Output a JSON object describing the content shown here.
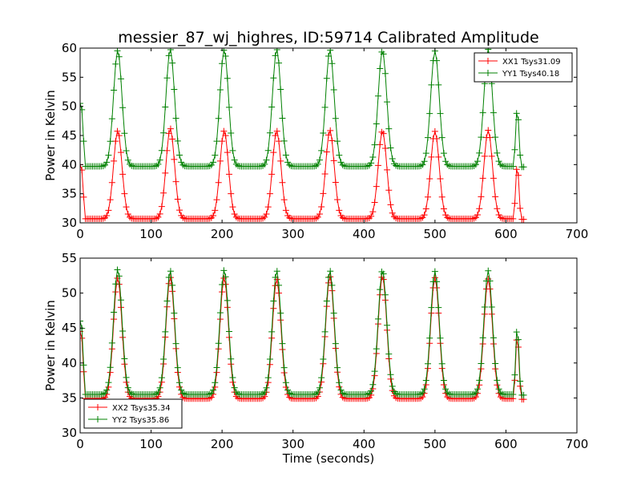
{
  "figure": {
    "title": "messier_87_wj_highres, ID:59714 Calibrated Amplitude"
  },
  "chart_data": [
    {
      "type": "line",
      "title": "messier_87_wj_highres, ID:59714 Calibrated Amplitude",
      "xlabel": "",
      "ylabel": "Power in Kelvin",
      "xlim": [
        0,
        700
      ],
      "ylim": [
        30,
        60
      ],
      "xticks": [
        0,
        100,
        200,
        300,
        400,
        500,
        600,
        700
      ],
      "yticks": [
        30,
        35,
        40,
        45,
        50,
        55,
        60
      ],
      "grid": false,
      "legend_position": "top-right",
      "marker": "+",
      "series": [
        {
          "name": "XX1 Tsys31.09",
          "color": "#ff0000",
          "start_x": 0,
          "end_x": 625,
          "baseline": 30.7,
          "initial_value": 40.0,
          "peaks": [
            {
              "x": 53,
              "y": 45.8
            },
            {
              "x": 127,
              "y": 46.2
            },
            {
              "x": 203,
              "y": 45.8
            },
            {
              "x": 277,
              "y": 45.8
            },
            {
              "x": 352,
              "y": 45.9
            },
            {
              "x": 426,
              "y": 45.8
            },
            {
              "x": 500,
              "y": 45.7
            },
            {
              "x": 575,
              "y": 45.9
            },
            {
              "x": 616,
              "y": 40.1
            }
          ]
        },
        {
          "name": "YY1 Tsys40.18",
          "color": "#008000",
          "start_x": 0,
          "end_x": 625,
          "baseline": 39.7,
          "initial_value": 50.5,
          "peaks": [
            {
              "x": 53,
              "y": 59.6
            },
            {
              "x": 127,
              "y": 59.8
            },
            {
              "x": 203,
              "y": 59.7
            },
            {
              "x": 277,
              "y": 59.8
            },
            {
              "x": 352,
              "y": 59.7
            },
            {
              "x": 426,
              "y": 59.6
            },
            {
              "x": 500,
              "y": 59.5
            },
            {
              "x": 575,
              "y": 59.8
            },
            {
              "x": 616,
              "y": 49.8
            }
          ]
        }
      ]
    },
    {
      "type": "line",
      "title": "",
      "xlabel": "Time (seconds)",
      "ylabel": "Power in Kelvin",
      "xlim": [
        0,
        700
      ],
      "ylim": [
        30,
        55
      ],
      "xticks": [
        0,
        100,
        200,
        300,
        400,
        500,
        600,
        700
      ],
      "yticks": [
        30,
        35,
        40,
        45,
        50,
        55
      ],
      "grid": false,
      "legend_position": "bottom-left",
      "marker": "+",
      "series": [
        {
          "name": "XX2 Tsys35.34",
          "color": "#ff0000",
          "start_x": 0,
          "end_x": 625,
          "baseline": 34.9,
          "initial_value": 44.5,
          "peaks": [
            {
              "x": 53,
              "y": 52.2
            },
            {
              "x": 127,
              "y": 52.3
            },
            {
              "x": 203,
              "y": 52.2
            },
            {
              "x": 277,
              "y": 52.0
            },
            {
              "x": 352,
              "y": 52.4
            },
            {
              "x": 426,
              "y": 52.5
            },
            {
              "x": 500,
              "y": 52.2
            },
            {
              "x": 575,
              "y": 52.0
            },
            {
              "x": 616,
              "y": 44.2
            }
          ]
        },
        {
          "name": "YY2 Tsys35.86",
          "color": "#008000",
          "start_x": 0,
          "end_x": 625,
          "baseline": 35.5,
          "initial_value": 46.0,
          "peaks": [
            {
              "x": 53,
              "y": 53.4
            },
            {
              "x": 127,
              "y": 53.2
            },
            {
              "x": 203,
              "y": 53.3
            },
            {
              "x": 277,
              "y": 53.2
            },
            {
              "x": 352,
              "y": 53.2
            },
            {
              "x": 426,
              "y": 53.3
            },
            {
              "x": 500,
              "y": 53.1
            },
            {
              "x": 575,
              "y": 53.2
            },
            {
              "x": 616,
              "y": 45.4
            }
          ]
        }
      ]
    }
  ]
}
